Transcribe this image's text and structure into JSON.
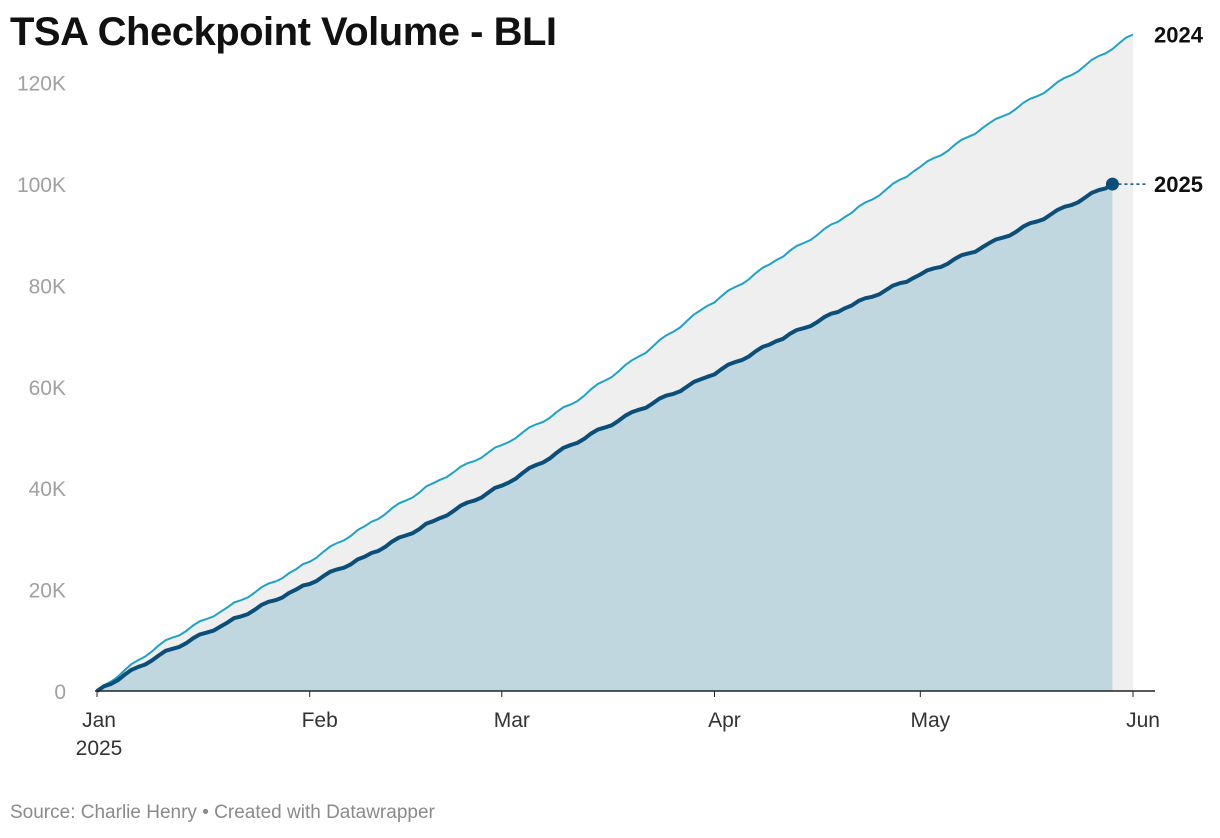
{
  "title": "TSA Checkpoint Volume - BLI",
  "footer": {
    "source": "Source: Charlie Henry",
    "separator": " • ",
    "credit": "Created with Datawrapper"
  },
  "colors": {
    "series_2024": "#1fa2c8",
    "series_2025": "#0b4f79",
    "area_2025": "#c1d7df",
    "area_gap": "#efefef",
    "tick_text": "#a0a0a0",
    "grid": "#e6e6e6"
  },
  "chart_data": {
    "type": "area",
    "title": "TSA Checkpoint Volume - BLI",
    "xlabel": "",
    "ylabel": "",
    "x_unit": "day of year (1 = Jan 1)",
    "x_range": [
      1,
      152
    ],
    "ylim": [
      0,
      130000
    ],
    "y_ticks": [
      0,
      20000,
      40000,
      60000,
      80000,
      100000,
      120000
    ],
    "y_tick_labels": [
      "0",
      "20K",
      "40K",
      "60K",
      "80K",
      "100K",
      "120K"
    ],
    "x_ticks": [
      {
        "day": 1,
        "label": "Jan",
        "sublabel": "2025"
      },
      {
        "day": 32,
        "label": "Feb"
      },
      {
        "day": 60,
        "label": "Mar"
      },
      {
        "day": 91,
        "label": "Apr"
      },
      {
        "day": 121,
        "label": "May"
      },
      {
        "day": 152,
        "label": "Jun"
      }
    ],
    "grid": false,
    "legend": "direct labels at line ends (right)",
    "series": [
      {
        "name": "2024",
        "label": "2024",
        "x": [
          1,
          10,
          20,
          30,
          40,
          50,
          60,
          70,
          80,
          90,
          100,
          110,
          120,
          130,
          140,
          152
        ],
        "values": [
          0,
          9000,
          16500,
          24000,
          32500,
          41000,
          48500,
          56500,
          66000,
          76000,
          85000,
          93500,
          102500,
          111000,
          119000,
          129500
        ]
      },
      {
        "name": "2025",
        "label": "2025",
        "x": [
          1,
          10,
          20,
          30,
          40,
          50,
          60,
          70,
          80,
          90,
          100,
          110,
          120,
          130,
          140,
          149
        ],
        "values": [
          0,
          7000,
          13500,
          20000,
          26500,
          33500,
          40500,
          48500,
          55500,
          62000,
          69000,
          75500,
          81500,
          87500,
          94000,
          100000
        ]
      }
    ]
  }
}
